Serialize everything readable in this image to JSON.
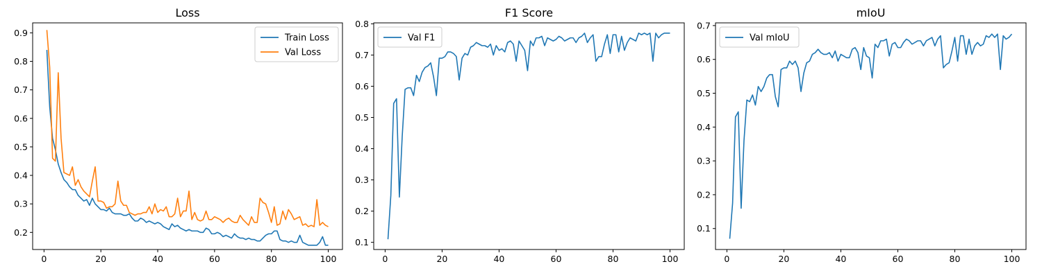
{
  "chart_data": [
    {
      "type": "line",
      "title": "Loss",
      "xlabel": "",
      "ylabel": "",
      "xlim": [
        -4,
        105
      ],
      "ylim": [
        0.14,
        0.935
      ],
      "xticks": [
        0,
        20,
        40,
        60,
        80,
        100
      ],
      "yticks": [
        0.2,
        0.3,
        0.4,
        0.5,
        0.6,
        0.7,
        0.8,
        0.9
      ],
      "legend": "upper right",
      "x": [
        1,
        2,
        3,
        4,
        5,
        6,
        7,
        8,
        9,
        10,
        11,
        12,
        13,
        14,
        15,
        16,
        17,
        18,
        19,
        20,
        21,
        22,
        23,
        24,
        25,
        26,
        27,
        28,
        29,
        30,
        31,
        32,
        33,
        34,
        35,
        36,
        37,
        38,
        39,
        40,
        41,
        42,
        43,
        44,
        45,
        46,
        47,
        48,
        49,
        50,
        51,
        52,
        53,
        54,
        55,
        56,
        57,
        58,
        59,
        60,
        61,
        62,
        63,
        64,
        65,
        66,
        67,
        68,
        69,
        70,
        71,
        72,
        73,
        74,
        75,
        76,
        77,
        78,
        79,
        80,
        81,
        82,
        83,
        84,
        85,
        86,
        87,
        88,
        89,
        90,
        91,
        92,
        93,
        94,
        95,
        96,
        97,
        98,
        99,
        100
      ],
      "series": [
        {
          "name": "Train Loss",
          "color": "#1f77b4",
          "values": [
            0.84,
            0.64,
            0.53,
            0.49,
            0.44,
            0.41,
            0.385,
            0.375,
            0.36,
            0.35,
            0.35,
            0.33,
            0.32,
            0.31,
            0.315,
            0.295,
            0.32,
            0.3,
            0.29,
            0.28,
            0.28,
            0.275,
            0.285,
            0.27,
            0.265,
            0.265,
            0.265,
            0.26,
            0.26,
            0.265,
            0.25,
            0.24,
            0.24,
            0.25,
            0.245,
            0.235,
            0.24,
            0.235,
            0.23,
            0.235,
            0.23,
            0.22,
            0.215,
            0.21,
            0.23,
            0.22,
            0.225,
            0.215,
            0.21,
            0.205,
            0.21,
            0.205,
            0.205,
            0.205,
            0.2,
            0.2,
            0.215,
            0.21,
            0.195,
            0.195,
            0.2,
            0.195,
            0.185,
            0.19,
            0.185,
            0.18,
            0.195,
            0.185,
            0.18,
            0.18,
            0.175,
            0.18,
            0.175,
            0.175,
            0.17,
            0.17,
            0.18,
            0.19,
            0.195,
            0.195,
            0.205,
            0.205,
            0.175,
            0.17,
            0.17,
            0.165,
            0.17,
            0.165,
            0.165,
            0.19,
            0.165,
            0.16,
            0.155,
            0.155,
            0.155,
            0.155,
            0.165,
            0.185,
            0.155,
            0.155
          ]
        },
        {
          "name": "Val Loss",
          "color": "#ff7f0e",
          "values": [
            0.91,
            0.78,
            0.46,
            0.45,
            0.76,
            0.53,
            0.41,
            0.405,
            0.4,
            0.43,
            0.365,
            0.385,
            0.36,
            0.345,
            0.335,
            0.325,
            0.38,
            0.43,
            0.31,
            0.31,
            0.305,
            0.285,
            0.29,
            0.29,
            0.3,
            0.38,
            0.31,
            0.295,
            0.295,
            0.27,
            0.265,
            0.26,
            0.265,
            0.265,
            0.27,
            0.27,
            0.29,
            0.265,
            0.3,
            0.27,
            0.28,
            0.275,
            0.29,
            0.255,
            0.255,
            0.265,
            0.32,
            0.255,
            0.275,
            0.275,
            0.345,
            0.245,
            0.27,
            0.245,
            0.24,
            0.245,
            0.275,
            0.245,
            0.245,
            0.255,
            0.25,
            0.245,
            0.235,
            0.245,
            0.25,
            0.24,
            0.235,
            0.235,
            0.26,
            0.245,
            0.235,
            0.225,
            0.255,
            0.235,
            0.235,
            0.32,
            0.305,
            0.3,
            0.27,
            0.235,
            0.29,
            0.225,
            0.23,
            0.275,
            0.245,
            0.28,
            0.265,
            0.245,
            0.25,
            0.255,
            0.225,
            0.23,
            0.22,
            0.225,
            0.22,
            0.315,
            0.225,
            0.235,
            0.225,
            0.22
          ]
        }
      ]
    },
    {
      "type": "line",
      "title": "F1 Score",
      "xlabel": "",
      "ylabel": "",
      "xlim": [
        -4,
        105
      ],
      "ylim": [
        0.077,
        0.803
      ],
      "xticks": [
        0,
        20,
        40,
        60,
        80,
        100
      ],
      "yticks": [
        0.1,
        0.2,
        0.3,
        0.4,
        0.5,
        0.6,
        0.7,
        0.8
      ],
      "legend": "upper left",
      "x": [
        1,
        2,
        3,
        4,
        5,
        6,
        7,
        8,
        9,
        10,
        11,
        12,
        13,
        14,
        15,
        16,
        17,
        18,
        19,
        20,
        21,
        22,
        23,
        24,
        25,
        26,
        27,
        28,
        29,
        30,
        31,
        32,
        33,
        34,
        35,
        36,
        37,
        38,
        39,
        40,
        41,
        42,
        43,
        44,
        45,
        46,
        47,
        48,
        49,
        50,
        51,
        52,
        53,
        54,
        55,
        56,
        57,
        58,
        59,
        60,
        61,
        62,
        63,
        64,
        65,
        66,
        67,
        68,
        69,
        70,
        71,
        72,
        73,
        74,
        75,
        76,
        77,
        78,
        79,
        80,
        81,
        82,
        83,
        84,
        85,
        86,
        87,
        88,
        89,
        90,
        91,
        92,
        93,
        94,
        95,
        96,
        97,
        98,
        99,
        100
      ],
      "series": [
        {
          "name": "Val F1",
          "color": "#1f77b4",
          "values": [
            0.11,
            0.25,
            0.545,
            0.56,
            0.245,
            0.44,
            0.59,
            0.595,
            0.595,
            0.57,
            0.635,
            0.615,
            0.645,
            0.66,
            0.665,
            0.675,
            0.63,
            0.57,
            0.69,
            0.69,
            0.695,
            0.71,
            0.71,
            0.705,
            0.695,
            0.62,
            0.69,
            0.705,
            0.7,
            0.725,
            0.73,
            0.74,
            0.735,
            0.73,
            0.73,
            0.725,
            0.735,
            0.7,
            0.73,
            0.715,
            0.72,
            0.71,
            0.74,
            0.745,
            0.735,
            0.68,
            0.745,
            0.73,
            0.715,
            0.65,
            0.745,
            0.73,
            0.755,
            0.755,
            0.76,
            0.73,
            0.755,
            0.75,
            0.745,
            0.75,
            0.76,
            0.755,
            0.745,
            0.75,
            0.755,
            0.755,
            0.74,
            0.755,
            0.76,
            0.77,
            0.74,
            0.755,
            0.765,
            0.68,
            0.695,
            0.695,
            0.735,
            0.765,
            0.705,
            0.765,
            0.765,
            0.71,
            0.76,
            0.715,
            0.74,
            0.755,
            0.75,
            0.745,
            0.77,
            0.765,
            0.77,
            0.765,
            0.77,
            0.68,
            0.77,
            0.755,
            0.765,
            0.77,
            0.77,
            0.77
          ]
        }
      ]
    },
    {
      "type": "line",
      "title": "mIoU",
      "xlabel": "",
      "ylabel": "",
      "xlim": [
        -4,
        105
      ],
      "ylim": [
        0.038,
        0.708
      ],
      "xticks": [
        0,
        20,
        40,
        60,
        80,
        100
      ],
      "yticks": [
        0.1,
        0.2,
        0.3,
        0.4,
        0.5,
        0.6,
        0.7
      ],
      "legend": "upper left",
      "x": [
        1,
        2,
        3,
        4,
        5,
        6,
        7,
        8,
        9,
        10,
        11,
        12,
        13,
        14,
        15,
        16,
        17,
        18,
        19,
        20,
        21,
        22,
        23,
        24,
        25,
        26,
        27,
        28,
        29,
        30,
        31,
        32,
        33,
        34,
        35,
        36,
        37,
        38,
        39,
        40,
        41,
        42,
        43,
        44,
        45,
        46,
        47,
        48,
        49,
        50,
        51,
        52,
        53,
        54,
        55,
        56,
        57,
        58,
        59,
        60,
        61,
        62,
        63,
        64,
        65,
        66,
        67,
        68,
        69,
        70,
        71,
        72,
        73,
        74,
        75,
        76,
        77,
        78,
        79,
        80,
        81,
        82,
        83,
        84,
        85,
        86,
        87,
        88,
        89,
        90,
        91,
        92,
        93,
        94,
        95,
        96,
        97,
        98,
        99,
        100
      ],
      "series": [
        {
          "name": "Val mIoU",
          "color": "#1f77b4",
          "values": [
            0.07,
            0.175,
            0.43,
            0.445,
            0.16,
            0.36,
            0.48,
            0.475,
            0.495,
            0.465,
            0.52,
            0.505,
            0.52,
            0.545,
            0.555,
            0.555,
            0.49,
            0.46,
            0.57,
            0.575,
            0.575,
            0.595,
            0.585,
            0.595,
            0.575,
            0.505,
            0.56,
            0.59,
            0.595,
            0.615,
            0.62,
            0.63,
            0.62,
            0.615,
            0.615,
            0.62,
            0.605,
            0.625,
            0.595,
            0.615,
            0.61,
            0.605,
            0.605,
            0.63,
            0.635,
            0.62,
            0.57,
            0.635,
            0.61,
            0.605,
            0.545,
            0.645,
            0.635,
            0.655,
            0.655,
            0.66,
            0.61,
            0.645,
            0.65,
            0.635,
            0.635,
            0.65,
            0.66,
            0.655,
            0.645,
            0.65,
            0.655,
            0.655,
            0.64,
            0.655,
            0.66,
            0.665,
            0.64,
            0.66,
            0.67,
            0.575,
            0.585,
            0.59,
            0.625,
            0.665,
            0.595,
            0.67,
            0.67,
            0.615,
            0.66,
            0.615,
            0.64,
            0.65,
            0.64,
            0.645,
            0.67,
            0.665,
            0.675,
            0.665,
            0.675,
            0.57,
            0.67,
            0.66,
            0.665,
            0.675
          ]
        }
      ]
    }
  ]
}
